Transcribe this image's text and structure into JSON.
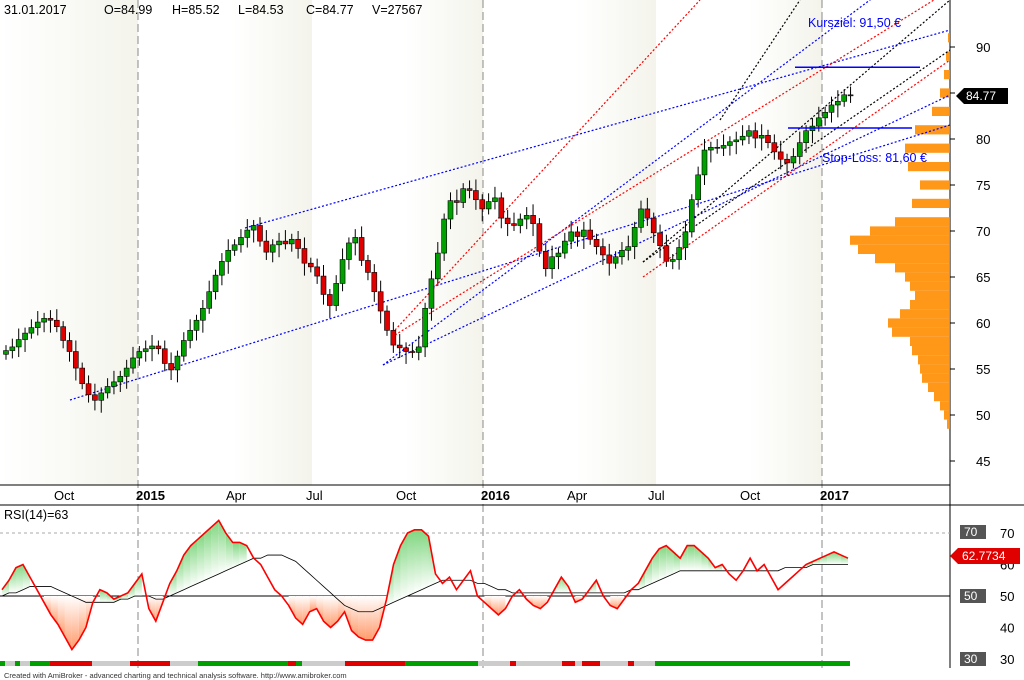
{
  "header": {
    "date": "31.01.2017",
    "open": "O=84.99",
    "high": "H=85.52",
    "low": "L=84.53",
    "close": "C=84.77",
    "volume": "V=27567"
  },
  "colors": {
    "up_candle": "#00a000",
    "down_candle": "#e00000",
    "channel_blue": "#0000ff",
    "channel_red": "#ff0000",
    "fan_black": "#000000",
    "volume_profile": "#ff8c00",
    "rsi_line": "#ff0000",
    "rsi_ma": "#000000"
  },
  "chart_data": [
    {
      "type": "candlestick",
      "title": "",
      "x_ticks": [
        "Oct",
        "2015",
        "Apr",
        "Jul",
        "Oct",
        "2016",
        "Apr",
        "Jul",
        "Oct",
        "2017"
      ],
      "x_tick_dates": [
        "2014-10-01",
        "2015-01-01",
        "2015-04-01",
        "2015-07-01",
        "2015-10-01",
        "2016-01-01",
        "2016-04-01",
        "2016-07-01",
        "2016-10-01",
        "2017-01-01"
      ],
      "y_ticks": [
        45,
        50,
        55,
        60,
        65,
        70,
        75,
        80,
        85,
        90
      ],
      "ylim": [
        40.5,
        94
      ],
      "last_price_label": "84.77",
      "annotations": [
        {
          "text": "Kursziel: 91,50 €",
          "value": 91.5
        },
        {
          "text": "Stop-Loss: 81,60 €",
          "value": 81.6
        }
      ],
      "weekly_close": [
        57,
        57.4,
        58.2,
        58.9,
        59.5,
        60.1,
        60.5,
        60.3,
        59.6,
        58.1,
        56.9,
        55.1,
        53.4,
        52.2,
        51.6,
        52.4,
        53.1,
        53.6,
        54.2,
        55.1,
        56.2,
        56.9,
        57.2,
        57.5,
        57.2,
        55.6,
        54.9,
        56.4,
        58.1,
        59.2,
        60.3,
        61.6,
        63.4,
        65.2,
        66.7,
        67.9,
        68.5,
        69.3,
        70.1,
        70.6,
        68.9,
        67.7,
        68.5,
        68.9,
        68.6,
        69.1,
        68.1,
        66.5,
        66.1,
        65.1,
        63.1,
        61.9,
        64.3,
        66.9,
        68.7,
        69.3,
        66.8,
        65.5,
        63.4,
        61.3,
        59.2,
        57.6,
        57.3,
        56.9,
        56.8,
        57.4,
        61.6,
        64.8,
        67.6,
        71.3,
        73.3,
        73.1,
        74.6,
        74.4,
        73.4,
        72.4,
        73.2,
        73.6,
        71.4,
        70.8,
        70.6,
        71.3,
        71.7,
        70.8,
        67.8,
        65.9,
        67.2,
        67.6,
        68.9,
        69.9,
        69.4,
        70.1,
        69.1,
        68.3,
        67.4,
        66.5,
        67.2,
        67.9,
        68.3,
        70.4,
        72.4,
        71.4,
        69.8,
        68.4,
        66.7,
        66.9,
        68.2,
        69.9,
        73.4,
        76.1,
        78.8,
        79.1,
        79.0,
        79.3,
        79.7,
        79.9,
        80.3,
        80.9,
        80.1,
        80.4,
        79.6,
        78.6,
        77.8,
        77.4,
        78.1,
        79.6,
        80.9,
        81.4,
        82.3,
        82.9,
        83.7,
        84.1,
        84.8,
        84.77
      ],
      "volume_profile": {
        "description": "horizontal volume-at-price histogram on right edge",
        "price_levels": [
          91,
          89,
          87,
          85,
          83,
          81,
          79,
          77,
          75,
          73,
          71,
          70,
          69,
          68,
          67,
          66,
          65,
          64,
          63,
          62,
          61,
          60,
          59,
          58,
          57,
          56,
          55,
          54,
          53,
          52,
          51,
          50,
          49
        ],
        "relative_volume": [
          0.02,
          0.04,
          0.06,
          0.1,
          0.18,
          0.35,
          0.45,
          0.42,
          0.3,
          0.38,
          0.55,
          0.8,
          1.0,
          0.92,
          0.75,
          0.55,
          0.45,
          0.4,
          0.35,
          0.4,
          0.5,
          0.62,
          0.58,
          0.4,
          0.38,
          0.32,
          0.3,
          0.28,
          0.22,
          0.16,
          0.1,
          0.06,
          0.03
        ]
      }
    },
    {
      "type": "line",
      "title": "RSI(14)=63",
      "y_ticks": [
        30,
        40,
        50,
        60,
        70
      ],
      "ylim": [
        28,
        76
      ],
      "levels": {
        "upper": 70,
        "lower": 50
      },
      "badges": [
        "70",
        "50",
        "30"
      ],
      "last_value_label": "62.7734",
      "series": [
        {
          "values": [
            52,
            55,
            59,
            60,
            56,
            52,
            48,
            44,
            41,
            37,
            33,
            36,
            40,
            48,
            52,
            51,
            49,
            50,
            51,
            54,
            57,
            46,
            42,
            48,
            54,
            58,
            63,
            66,
            68,
            70,
            72,
            74,
            70,
            67,
            67,
            66,
            62,
            60,
            56,
            52,
            50,
            47,
            43,
            41,
            45,
            46,
            42,
            40,
            42,
            45,
            39,
            37,
            36,
            36,
            40,
            49,
            60,
            66,
            70,
            71,
            71,
            69,
            57,
            54,
            56,
            52,
            55,
            58,
            50,
            48,
            46,
            44,
            46,
            50,
            52,
            49,
            47,
            46,
            48,
            52,
            56,
            53,
            48,
            49,
            52,
            55,
            50,
            47,
            46,
            49,
            52,
            54,
            58,
            62,
            65,
            66,
            64,
            62,
            66,
            66,
            64,
            62,
            59,
            60,
            57,
            55,
            58,
            62,
            58,
            60,
            56,
            52,
            54,
            56,
            58,
            60,
            61,
            62,
            63,
            64,
            63,
            62
          ]
        },
        {
          "values": [
            50,
            51,
            51,
            52,
            53,
            53,
            53,
            53,
            52,
            51,
            50,
            49,
            48,
            48,
            48,
            48,
            48,
            49,
            49,
            50,
            50,
            50,
            49,
            49,
            50,
            51,
            52,
            53,
            54,
            55,
            56,
            57,
            58,
            59,
            60,
            61,
            62,
            62,
            63,
            63,
            63,
            62,
            61,
            59,
            57,
            55,
            53,
            51,
            49,
            47,
            46,
            45,
            45,
            45,
            46,
            47,
            48,
            49,
            50,
            51,
            52,
            53,
            54,
            55,
            55,
            55,
            55,
            55,
            54,
            54,
            53,
            52,
            52,
            51,
            51,
            51,
            51,
            51,
            51,
            51,
            51,
            51,
            51,
            51,
            51,
            51,
            51,
            51,
            51,
            51,
            52,
            52,
            53,
            54,
            55,
            56,
            57,
            58,
            58,
            58,
            58,
            58,
            58,
            58,
            58,
            58,
            58,
            58,
            58,
            58,
            58,
            58,
            59,
            59,
            59,
            59,
            60,
            60,
            60,
            60,
            60,
            60
          ]
        }
      ]
    }
  ],
  "footer": {
    "credit": "Created with AmiBroker - advanced charting and technical analysis software. http://www.amibroker.com"
  }
}
